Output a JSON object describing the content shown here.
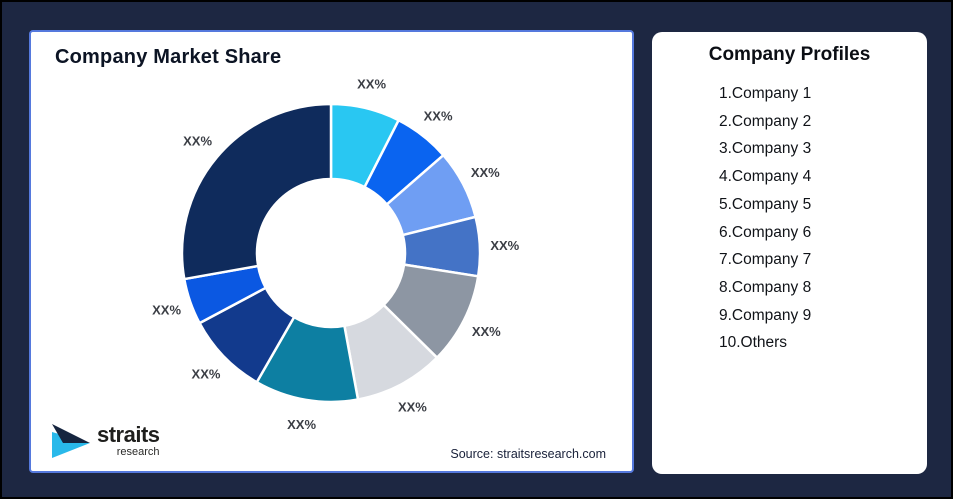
{
  "frame": {
    "background_color": "#1d2742",
    "outer_border_color": "#000000"
  },
  "left_panel": {
    "title": "Company Market Share",
    "source_note": "Source: straitsresearch.com",
    "border_color": "#5579dd",
    "logo": {
      "brand": "straits",
      "brand_sub": "research",
      "icon": "straits-arrow-icon",
      "color_dark": "#16253f",
      "color_cyan": "#29b9ea"
    }
  },
  "right_panel": {
    "title": "Company Profiles",
    "items": [
      "1.Company 1",
      "2.Company 2",
      "3.Company 3",
      "4.Company 4",
      "5.Company 5",
      "6.Company 6",
      "7.Company 7",
      "8.Company 8",
      "9.Company 9",
      "10.Others"
    ]
  },
  "chart_data": {
    "type": "pie",
    "subtype": "donut",
    "title": "Company Market Share",
    "value_labels_masked": true,
    "segments": [
      {
        "label": "XX%",
        "share_pct_est": 7.5,
        "color": "#29c7f2"
      },
      {
        "label": "XX%",
        "share_pct_est": 6.1,
        "color": "#0a64f0"
      },
      {
        "label": "XX%",
        "share_pct_est": 7.5,
        "color": "#6f9ef3"
      },
      {
        "label": "XX%",
        "share_pct_est": 6.4,
        "color": "#4473c6"
      },
      {
        "label": "XX%",
        "share_pct_est": 9.9,
        "color": "#8d96a3"
      },
      {
        "label": "XX%",
        "share_pct_est": 9.7,
        "color": "#d6d9df"
      },
      {
        "label": "XX%",
        "share_pct_est": 11.2,
        "color": "#0d7fa2"
      },
      {
        "label": "XX%",
        "share_pct_est": 8.9,
        "color": "#123a8d"
      },
      {
        "label": "XX%",
        "share_pct_est": 5.0,
        "color": "#0b58e2"
      },
      {
        "label": "XX%",
        "share_pct_est": 27.8,
        "color": "#0f2b5c"
      }
    ],
    "layout": {
      "start_angle_deg": 0,
      "clockwise": true,
      "inner_radius_ratio": 0.5,
      "label_color": "#3b3e45",
      "slice_gap_color": "#ffffff",
      "legend": "none"
    }
  }
}
